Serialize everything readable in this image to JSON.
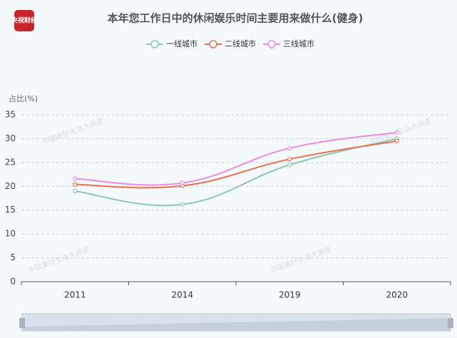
{
  "logo": "央视财经",
  "watermark": "中国美好生活大调查",
  "chart_data": {
    "type": "line",
    "title": "本年您工作日中的休闲娱乐时间主要用来做什么(健身)",
    "y_label": "占比(%)",
    "categories": [
      "2011",
      "2014",
      "2019",
      "2020"
    ],
    "series": [
      {
        "name": "一线城市",
        "color": "#8ec5b3",
        "values": [
          19,
          16.2,
          24.5,
          30
        ]
      },
      {
        "name": "二线城市",
        "color": "#e8714f",
        "values": [
          20.4,
          20.1,
          25.7,
          29.5
        ]
      },
      {
        "name": "三线城市",
        "color": "#e98be6",
        "values": [
          21.6,
          20.7,
          28,
          31.3
        ]
      }
    ],
    "ylim": [
      0,
      35
    ],
    "yticks": [
      0,
      5,
      10,
      15,
      20,
      25,
      30,
      35
    ],
    "grid": true,
    "legend": "top"
  }
}
